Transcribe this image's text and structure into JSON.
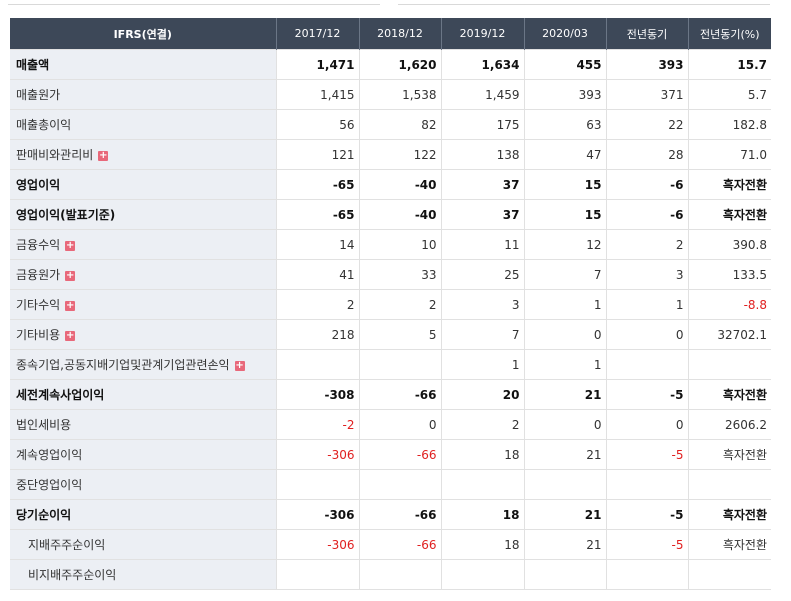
{
  "header": {
    "title": "IFRS(연결)",
    "columns": [
      "2017/12",
      "2018/12",
      "2019/12",
      "2020/03",
      "전년동기",
      "전년동기(%)"
    ]
  },
  "expand_symbol": "+",
  "rows": [
    {
      "label": "매출액",
      "bold": true,
      "expand": false,
      "values": [
        "1,471",
        "1,620",
        "1,634",
        "455",
        "393",
        "15.7"
      ]
    },
    {
      "label": "매출원가",
      "bold": false,
      "expand": false,
      "values": [
        "1,415",
        "1,538",
        "1,459",
        "393",
        "371",
        "5.7"
      ]
    },
    {
      "label": "매출총이익",
      "bold": false,
      "expand": false,
      "values": [
        "56",
        "82",
        "175",
        "63",
        "22",
        "182.8"
      ]
    },
    {
      "label": "판매비와관리비",
      "bold": false,
      "expand": true,
      "values": [
        "121",
        "122",
        "138",
        "47",
        "28",
        "71.0"
      ]
    },
    {
      "label": "영업이익",
      "bold": true,
      "expand": false,
      "values": [
        "-65",
        "-40",
        "37",
        "15",
        "-6",
        "흑자전환"
      ]
    },
    {
      "label": "영업이익(발표기준)",
      "bold": true,
      "expand": false,
      "values": [
        "-65",
        "-40",
        "37",
        "15",
        "-6",
        "흑자전환"
      ]
    },
    {
      "label": "금융수익",
      "bold": false,
      "expand": true,
      "values": [
        "14",
        "10",
        "11",
        "12",
        "2",
        "390.8"
      ]
    },
    {
      "label": "금융원가",
      "bold": false,
      "expand": true,
      "values": [
        "41",
        "33",
        "25",
        "7",
        "3",
        "133.5"
      ]
    },
    {
      "label": "기타수익",
      "bold": false,
      "expand": true,
      "values": [
        "2",
        "2",
        "3",
        "1",
        "1",
        "-8.8"
      ]
    },
    {
      "label": "기타비용",
      "bold": false,
      "expand": true,
      "values": [
        "218",
        "5",
        "7",
        "0",
        "0",
        "32702.1"
      ]
    },
    {
      "label": "종속기업,공동지배기업및관계기업관련손익",
      "bold": false,
      "expand": true,
      "values": [
        "",
        "",
        "1",
        "1",
        "",
        ""
      ]
    },
    {
      "label": "세전계속사업이익",
      "bold": true,
      "expand": false,
      "values": [
        "-308",
        "-66",
        "20",
        "21",
        "-5",
        "흑자전환"
      ]
    },
    {
      "label": "법인세비용",
      "bold": false,
      "expand": false,
      "values": [
        "-2",
        "0",
        "2",
        "0",
        "0",
        "2606.2"
      ]
    },
    {
      "label": "계속영업이익",
      "bold": false,
      "expand": false,
      "values": [
        "-306",
        "-66",
        "18",
        "21",
        "-5",
        "흑자전환"
      ]
    },
    {
      "label": "중단영업이익",
      "bold": false,
      "expand": false,
      "values": [
        "",
        "",
        "",
        "",
        "",
        ""
      ]
    },
    {
      "label": "당기순이익",
      "bold": true,
      "expand": false,
      "values": [
        "-306",
        "-66",
        "18",
        "21",
        "-5",
        "흑자전환"
      ]
    },
    {
      "label": "지배주주순이익",
      "bold": false,
      "expand": false,
      "indent": true,
      "values": [
        "-306",
        "-66",
        "18",
        "21",
        "-5",
        "흑자전환"
      ]
    },
    {
      "label": "비지배주주순이익",
      "bold": false,
      "expand": false,
      "indent": true,
      "values": [
        "",
        "",
        "",
        "",
        "",
        ""
      ]
    }
  ],
  "colors": {
    "header_bg": "#3d4858",
    "label_bg": "#eceff4",
    "negative": "#e02020",
    "expand_icon": "#e8687a"
  }
}
